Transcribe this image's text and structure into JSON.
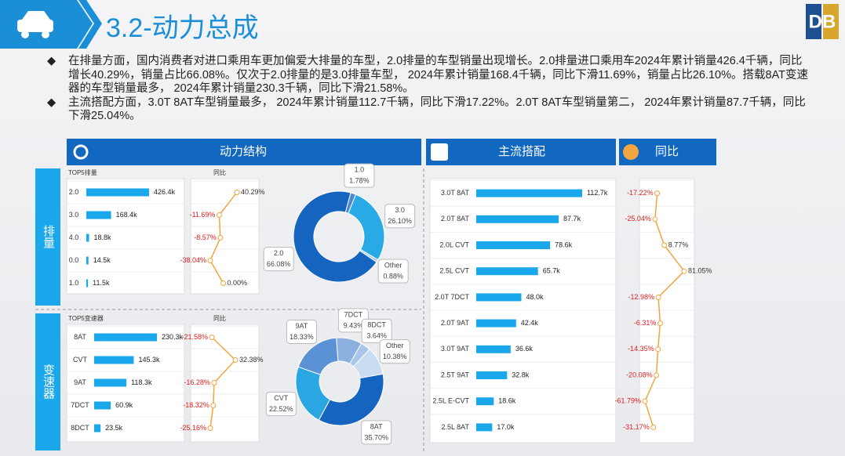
{
  "header": {
    "title": "3.2-动力总成"
  },
  "bullets": [
    "在排量方面，国内消费者对进口乘用车更加偏爱大排量的车型，2.0排量的车型销量出现增长。2.0排量进口乘用车2024年累计销量426.4千辆，同比增长40.29%，销量占比66.08%。仅次于2.0排量的是3.0排量车型， 2024年累计销量168.4千辆，同比下滑11.69%，销量占比26.10%。搭载8AT变速器的车型销量最多， 2024年累计销量230.3千辆，同比下滑21.58%。",
    "主流搭配方面，3.0T 8AT车型销量最多， 2024年累计销量112.7千辆，同比下滑17.22%。2.0T 8AT车型销量第二， 2024年累计销量87.7千辆，同比下滑25.04%。"
  ],
  "panels": {
    "structure": "动力结构",
    "combo": "主流搭配",
    "yoy": "同比",
    "engine": "排量",
    "transmission": "变速器"
  },
  "chart_data": [
    {
      "type": "bar",
      "title": "TOP5排量",
      "categories": [
        "2.0",
        "3.0",
        "4.0",
        "0.0",
        "1.0"
      ],
      "values": [
        426.4,
        168.4,
        18.8,
        14.5,
        11.5
      ],
      "value_labels": [
        "426.4k",
        "168.4k",
        "18.8k",
        "14.5k",
        "11.5k"
      ],
      "color": "#1aa7ec"
    },
    {
      "type": "line",
      "title": "同比",
      "categories": [
        "2.0",
        "3.0",
        "4.0",
        "0.0",
        "1.0"
      ],
      "values": [
        40.29,
        -11.69,
        -8.57,
        -38.04,
        0
      ],
      "value_labels": [
        "40.29%",
        "-11.69%",
        "-8.57%",
        "-38.04%",
        "0.00%"
      ],
      "color": "#f2a541",
      "negative_color": "#e02020"
    },
    {
      "type": "pie",
      "categories": [
        "1.0",
        "3.0",
        "Other",
        "2.0"
      ],
      "values": [
        1.78,
        26.1,
        0.88,
        66.08
      ],
      "value_labels": [
        "1.78%",
        "26.10%",
        "0.88%",
        "66.08%"
      ],
      "colors": [
        "#4f86cf",
        "#29a9e6",
        "#a9c8ec",
        "#1565c0"
      ]
    },
    {
      "type": "bar",
      "title": "TOP5变速器",
      "categories": [
        "8AT",
        "CVT",
        "9AT",
        "7DCT",
        "8DCT"
      ],
      "values": [
        230.3,
        145.3,
        118.3,
        60.9,
        23.5
      ],
      "value_labels": [
        "230.3k",
        "145.3k",
        "118.3k",
        "60.9k",
        "23.5k"
      ],
      "color": "#1aa7ec"
    },
    {
      "type": "line",
      "title": "同比",
      "categories": [
        "8AT",
        "CVT",
        "9AT",
        "7DCT",
        "8DCT"
      ],
      "values": [
        -21.58,
        32.38,
        -16.28,
        -18.32,
        -25.16
      ],
      "value_labels": [
        "-21.58%",
        "32.38%",
        "-16.28%",
        "-18.32%",
        "-25.16%"
      ],
      "color": "#f2a541",
      "negative_color": "#e02020"
    },
    {
      "type": "pie",
      "categories": [
        "8AT",
        "CVT",
        "9AT",
        "7DCT",
        "8DCT",
        "Other"
      ],
      "values": [
        35.7,
        22.52,
        18.33,
        9.43,
        3.64,
        10.38
      ],
      "value_labels": [
        "35.70%",
        "22.52%",
        "18.33%",
        "9.43%",
        "3.64%",
        "10.38%"
      ],
      "colors": [
        "#1565c0",
        "#2aa7e3",
        "#5b92d6",
        "#8cb0e0",
        "#a9c6ea",
        "#c9dcf2"
      ]
    },
    {
      "type": "bar",
      "categories": [
        "3.0T 8AT",
        "2.0T 8AT",
        "2.0L CVT",
        "2.5L CVT",
        "2.0T 7DCT",
        "2.0T 9AT",
        "3.0T 9AT",
        "2.5T 9AT",
        "2.5L E-CVT",
        "2.5L 8AT"
      ],
      "values": [
        112.7,
        87.7,
        78.6,
        65.7,
        48,
        42.4,
        36.6,
        32.8,
        18.6,
        17
      ],
      "value_labels": [
        "112.7k",
        "87.7k",
        "78.6k",
        "65.7k",
        "48.0k",
        "42.4k",
        "36.6k",
        "32.8k",
        "18.6k",
        "17.0k"
      ],
      "color": "#1aa7ec"
    },
    {
      "type": "line",
      "categories": [
        "3.0T 8AT",
        "2.0T 8AT",
        "2.0L CVT",
        "2.5L CVT",
        "2.0T 7DCT",
        "2.0T 9AT",
        "3.0T 9AT",
        "2.5T 9AT",
        "2.5L E-CVT",
        "2.5L 8AT"
      ],
      "values": [
        -17.22,
        -25.04,
        8.77,
        81.05,
        -12.98,
        -6.31,
        -14.35,
        -20.08,
        -61.79,
        -31.17
      ],
      "value_labels": [
        "-17.22%",
        "-25.04%",
        "8.77%",
        "81.05%",
        "-12.98%",
        "-6.31%",
        "-14.35%",
        "-20.08%",
        "-61.79%",
        "-31.17%"
      ],
      "color": "#f2a541",
      "negative_color": "#e02020"
    }
  ]
}
